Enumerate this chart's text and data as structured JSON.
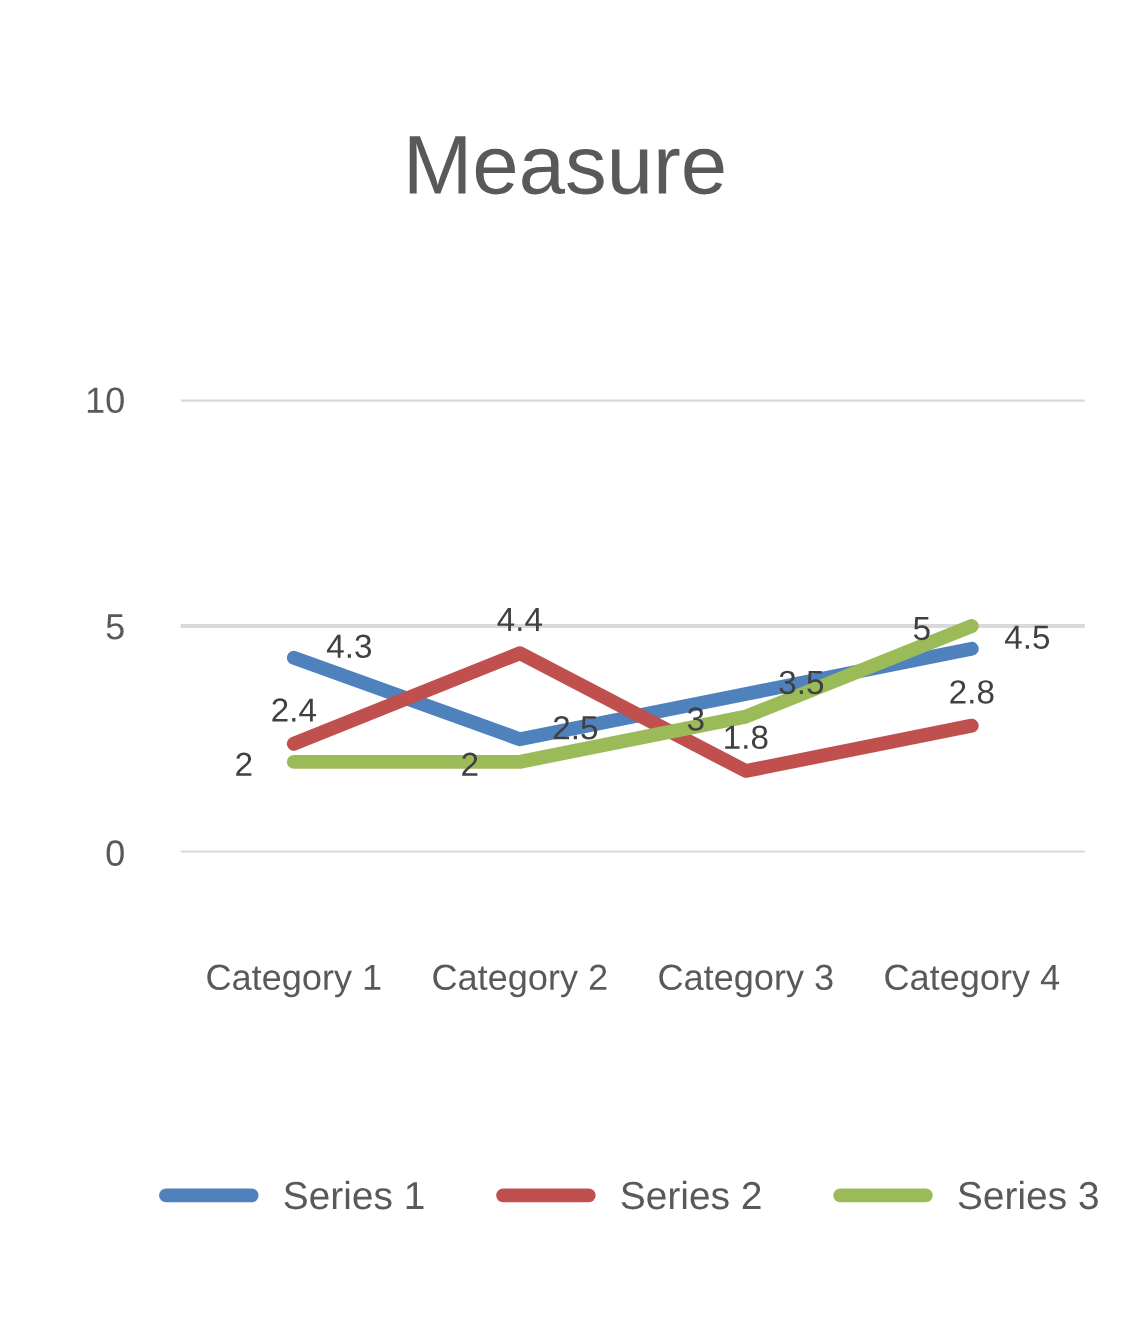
{
  "chart_data": {
    "type": "line",
    "title": "Measure",
    "categories": [
      "Category 1",
      "Category 2",
      "Category 3",
      "Category 4"
    ],
    "series": [
      {
        "name": "Series 1",
        "color": "#4f81bd",
        "values": [
          4.3,
          2.5,
          3.5,
          4.5
        ]
      },
      {
        "name": "Series 2",
        "color": "#c0504d",
        "values": [
          2.4,
          4.4,
          1.8,
          2.8
        ]
      },
      {
        "name": "Series 3",
        "color": "#9bbb59",
        "values": [
          2,
          2,
          3,
          5
        ]
      }
    ],
    "ylim": [
      0,
      10
    ],
    "yticks": [
      0,
      5,
      10
    ],
    "grid": "y",
    "legend": "bottom",
    "data_labels": true,
    "marker": "none",
    "line_style": "solid"
  }
}
